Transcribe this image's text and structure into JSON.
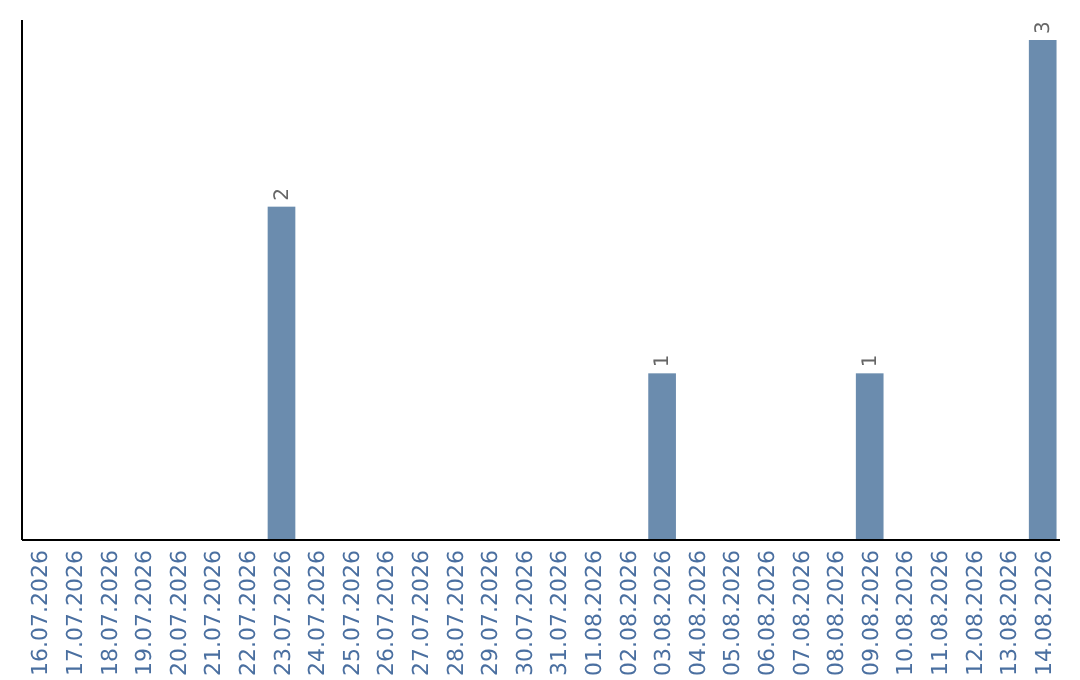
{
  "chart_data": {
    "type": "bar",
    "categories": [
      "16.07.2026",
      "17.07.2026",
      "18.07.2026",
      "19.07.2026",
      "20.07.2026",
      "21.07.2026",
      "22.07.2026",
      "23.07.2026",
      "24.07.2026",
      "25.07.2026",
      "26.07.2026",
      "27.07.2026",
      "28.07.2026",
      "29.07.2026",
      "30.07.2026",
      "31.07.2026",
      "01.08.2026",
      "02.08.2026",
      "03.08.2026",
      "04.08.2026",
      "05.08.2026",
      "06.08.2026",
      "07.08.2026",
      "08.08.2026",
      "09.08.2026",
      "10.08.2026",
      "11.08.2026",
      "12.08.2026",
      "13.08.2026",
      "14.08.2026"
    ],
    "values": [
      0,
      0,
      0,
      0,
      0,
      0,
      0,
      2,
      0,
      0,
      0,
      0,
      0,
      0,
      0,
      0,
      0,
      0,
      1,
      0,
      0,
      0,
      0,
      0,
      1,
      0,
      0,
      0,
      0,
      3
    ],
    "value_labels": [
      null,
      null,
      null,
      null,
      null,
      null,
      null,
      "2",
      null,
      null,
      null,
      null,
      null,
      null,
      null,
      null,
      null,
      null,
      "1",
      null,
      null,
      null,
      null,
      null,
      "1",
      null,
      null,
      null,
      null,
      "3"
    ],
    "color": "#6b8cae",
    "tick_labels": "x"
  }
}
